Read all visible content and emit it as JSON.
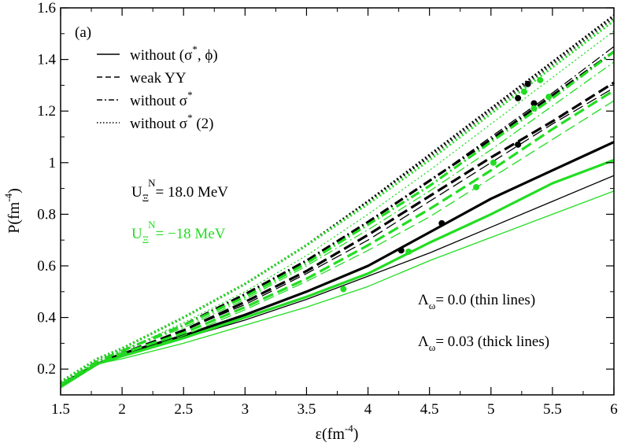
{
  "chart_data": {
    "type": "line",
    "panel_label": "(a)",
    "xlabel": "ε(fm-4)",
    "xlabel_main": "ε(fm",
    "xlabel_exp": "-4",
    "xlabel_close": ")",
    "ylabel_main": "P(fm",
    "ylabel_exp": "-4",
    "ylabel_close": ")",
    "xlim": [
      1.5,
      6
    ],
    "ylim": [
      0.1,
      1.6
    ],
    "x_ticks": [
      1.5,
      2,
      2.5,
      3,
      3.5,
      4,
      4.5,
      5,
      5.5,
      6
    ],
    "x_tick_labels": [
      "1.5",
      "2",
      "2.5",
      "3",
      "3.5",
      "4",
      "4.5",
      "5",
      "5.5",
      "6"
    ],
    "y_ticks": [
      0.2,
      0.4,
      0.6,
      0.8,
      1.0,
      1.2,
      1.4,
      1.6
    ],
    "y_tick_labels": [
      "0.2",
      "0.4",
      "0.6",
      "0.8",
      "1",
      "1.2",
      "1.4",
      "1.6"
    ],
    "grid": false,
    "legend": {
      "placement": "top-left",
      "entries": [
        {
          "style": "solid",
          "label": "without (σ*, ϕ)",
          "main": "without (σ",
          "sup": "*",
          "tail": ", ϕ)"
        },
        {
          "style": "dashed",
          "label": "weak YY",
          "main": "weak YY",
          "sup": "",
          "tail": ""
        },
        {
          "style": "dashdot",
          "label": "without σ*",
          "main": "without σ",
          "sup": "*",
          "tail": ""
        },
        {
          "style": "dotted",
          "label": "without σ* (2)",
          "main": "without σ",
          "sup": "*",
          "tail": " (2)"
        }
      ]
    },
    "annotations": {
      "u_black": {
        "prefix": "U",
        "sub": "Ξ",
        "sup": "N",
        "rest": "= 18.0 MeV",
        "color": "#000000"
      },
      "u_green": {
        "prefix": "U",
        "sub": "Ξ",
        "sup": "N",
        "rest": "= −18 MeV",
        "color": "#22dd22"
      },
      "lambda_thin": {
        "prefix": "Λ",
        "sub": "ω",
        "rest": "= 0.0 (thin lines)"
      },
      "lambda_thick": {
        "prefix": "Λ",
        "sub": "ω",
        "rest": "= 0.03 (thick lines)"
      }
    },
    "colors": {
      "black": "#000000",
      "green": "#22dd22"
    },
    "series": [
      {
        "name": "without (σ*, ϕ) U=18 Λ=0.0",
        "style": "solid",
        "color": "black",
        "thick": false,
        "x": [
          1.5,
          1.8,
          2.0,
          2.5,
          3.0,
          3.5,
          4.0,
          4.5,
          5.0,
          5.5,
          6.0
        ],
        "y": [
          0.14,
          0.22,
          0.25,
          0.32,
          0.39,
          0.47,
          0.56,
          0.65,
          0.75,
          0.85,
          0.95
        ],
        "marker": null
      },
      {
        "name": "without (σ*, ϕ) U=18 Λ=0.03",
        "style": "solid",
        "color": "black",
        "thick": true,
        "x": [
          1.5,
          1.8,
          2.0,
          2.5,
          3.0,
          3.5,
          4.0,
          4.5,
          5.0,
          5.5,
          6.0
        ],
        "y": [
          0.14,
          0.22,
          0.26,
          0.33,
          0.41,
          0.5,
          0.6,
          0.73,
          0.86,
          0.97,
          1.08
        ],
        "marker": [
          4.6,
          0.765
        ]
      },
      {
        "name": "without (σ*, ϕ) U=-18 Λ=0.0",
        "style": "solid",
        "color": "green",
        "thick": false,
        "x": [
          1.5,
          1.8,
          2.0,
          2.5,
          3.0,
          3.5,
          4.0,
          4.5,
          5.0,
          5.5,
          6.0
        ],
        "y": [
          0.14,
          0.22,
          0.24,
          0.3,
          0.37,
          0.44,
          0.52,
          0.62,
          0.71,
          0.8,
          0.89
        ],
        "marker": [
          3.8,
          0.51
        ]
      },
      {
        "name": "without (σ*, ϕ) U=-18 Λ=0.03",
        "style": "solid",
        "color": "green",
        "thick": true,
        "x": [
          1.5,
          1.8,
          2.0,
          2.5,
          3.0,
          3.5,
          4.0,
          4.5,
          5.0,
          5.5,
          6.0
        ],
        "y": [
          0.13,
          0.22,
          0.25,
          0.32,
          0.4,
          0.48,
          0.57,
          0.69,
          0.8,
          0.92,
          1.01
        ],
        "marker": [
          4.33,
          0.655
        ]
      },
      {
        "name": "weak YY U=18 Λ=0.0",
        "style": "dashed",
        "color": "black",
        "thick": false,
        "x": [
          1.5,
          1.8,
          2.0,
          2.5,
          3.0,
          3.5,
          4.0,
          4.5,
          5.0,
          5.5,
          6.0
        ],
        "y": [
          0.14,
          0.22,
          0.26,
          0.35,
          0.45,
          0.57,
          0.7,
          0.85,
          1.0,
          1.15,
          1.29
        ],
        "marker": null
      },
      {
        "name": "weak YY U=18 Λ=0.03",
        "style": "dashed",
        "color": "black",
        "thick": true,
        "x": [
          1.5,
          1.8,
          2.0,
          2.5,
          3.0,
          3.5,
          4.0,
          4.5,
          5.0,
          5.5,
          6.0
        ],
        "y": [
          0.14,
          0.22,
          0.26,
          0.35,
          0.46,
          0.58,
          0.72,
          0.87,
          1.02,
          1.16,
          1.31
        ],
        "marker": [
          5.22,
          1.07
        ]
      },
      {
        "name": "weak YY U=-18 Λ=0.0",
        "style": "dashed",
        "color": "green",
        "thick": false,
        "x": [
          1.5,
          1.8,
          2.0,
          2.5,
          3.0,
          3.5,
          4.0,
          4.5,
          5.0,
          5.5,
          6.0
        ],
        "y": [
          0.14,
          0.22,
          0.25,
          0.33,
          0.43,
          0.54,
          0.66,
          0.79,
          0.94,
          1.09,
          1.24
        ],
        "marker": [
          4.88,
          0.905
        ]
      },
      {
        "name": "weak YY U=-18 Λ=0.03",
        "style": "dashed",
        "color": "green",
        "thick": true,
        "x": [
          1.5,
          1.8,
          2.0,
          2.5,
          3.0,
          3.5,
          4.0,
          4.5,
          5.0,
          5.5,
          6.0
        ],
        "y": [
          0.14,
          0.22,
          0.26,
          0.34,
          0.44,
          0.55,
          0.68,
          0.82,
          0.97,
          1.13,
          1.28
        ],
        "marker": [
          5.02,
          1.0
        ]
      },
      {
        "name": "without σ* U=18 Λ=0.0",
        "style": "dashdot",
        "color": "black",
        "thick": false,
        "x": [
          1.5,
          1.8,
          2.0,
          2.5,
          3.0,
          3.5,
          4.0,
          4.5,
          5.0,
          5.5,
          6.0
        ],
        "y": [
          0.14,
          0.23,
          0.27,
          0.37,
          0.49,
          0.62,
          0.77,
          0.93,
          1.1,
          1.27,
          1.45
        ],
        "marker": null
      },
      {
        "name": "without σ* U=18 Λ=0.03",
        "style": "dashdot",
        "color": "black",
        "thick": true,
        "x": [
          1.5,
          1.8,
          2.0,
          2.5,
          3.0,
          3.5,
          4.0,
          4.5,
          5.0,
          5.5,
          6.0
        ],
        "y": [
          0.14,
          0.23,
          0.27,
          0.37,
          0.49,
          0.62,
          0.77,
          0.93,
          1.09,
          1.26,
          1.43
        ],
        "marker": [
          5.35,
          1.23
        ]
      },
      {
        "name": "without σ* U=-18 Λ=0.0",
        "style": "dashdot",
        "color": "green",
        "thick": false,
        "x": [
          1.5,
          1.8,
          2.0,
          2.5,
          3.0,
          3.5,
          4.0,
          4.5,
          5.0,
          5.5,
          6.0
        ],
        "y": [
          0.14,
          0.23,
          0.27,
          0.36,
          0.47,
          0.6,
          0.74,
          0.89,
          1.05,
          1.22,
          1.39
        ],
        "marker": [
          5.35,
          1.21
        ]
      },
      {
        "name": "without σ* U=-18 Λ=0.03",
        "style": "dashdot",
        "color": "green",
        "thick": true,
        "x": [
          1.5,
          1.8,
          2.0,
          2.5,
          3.0,
          3.5,
          4.0,
          4.5,
          5.0,
          5.5,
          6.0
        ],
        "y": [
          0.14,
          0.23,
          0.27,
          0.37,
          0.48,
          0.61,
          0.76,
          0.91,
          1.08,
          1.25,
          1.43
        ],
        "marker": [
          5.47,
          1.255
        ]
      },
      {
        "name": "without σ* (2) U=18 Λ=0.0",
        "style": "dotted",
        "color": "black",
        "thick": false,
        "x": [
          1.5,
          1.8,
          2.0,
          2.5,
          3.0,
          3.5,
          4.0,
          4.5,
          5.0,
          5.5,
          6.0
        ],
        "y": [
          0.15,
          0.24,
          0.28,
          0.4,
          0.53,
          0.68,
          0.85,
          1.02,
          1.2,
          1.38,
          1.56
        ],
        "marker": null
      },
      {
        "name": "without σ* (2) U=18 Λ=0.03",
        "style": "dotted",
        "color": "black",
        "thick": true,
        "x": [
          1.5,
          1.8,
          2.0,
          2.5,
          3.0,
          3.5,
          4.0,
          4.5,
          5.0,
          5.5,
          6.0
        ],
        "y": [
          0.15,
          0.24,
          0.28,
          0.4,
          0.53,
          0.68,
          0.85,
          1.03,
          1.21,
          1.39,
          1.57
        ],
        "marker": [
          5.3,
          1.305
        ]
      },
      {
        "name": "without σ* (2) U=-18 Λ=0.0",
        "style": "dotted",
        "color": "green",
        "thick": false,
        "x": [
          1.5,
          1.8,
          2.0,
          2.5,
          3.0,
          3.5,
          4.0,
          4.5,
          5.0,
          5.5,
          6.0
        ],
        "y": [
          0.14,
          0.23,
          0.27,
          0.38,
          0.5,
          0.64,
          0.8,
          0.97,
          1.15,
          1.33,
          1.51
        ],
        "marker": [
          5.27,
          1.275
        ]
      },
      {
        "name": "without σ* (2) U=-18 Λ=0.03",
        "style": "dotted",
        "color": "green",
        "thick": true,
        "x": [
          1.5,
          1.8,
          2.0,
          2.5,
          3.0,
          3.5,
          4.0,
          4.5,
          5.0,
          5.5,
          6.0
        ],
        "y": [
          0.15,
          0.24,
          0.28,
          0.4,
          0.53,
          0.68,
          0.84,
          1.01,
          1.19,
          1.37,
          1.55
        ],
        "marker": [
          5.4,
          1.32
        ]
      },
      {
        "name": "black marker (dash-dot group)",
        "style": "none",
        "color": "black",
        "thick": false,
        "x": [],
        "y": [],
        "marker": [
          5.22,
          1.25
        ]
      },
      {
        "name": "black marker (weak YY low)",
        "style": "none",
        "color": "black",
        "thick": false,
        "x": [],
        "y": [],
        "marker": [
          4.27,
          0.66
        ]
      }
    ]
  }
}
